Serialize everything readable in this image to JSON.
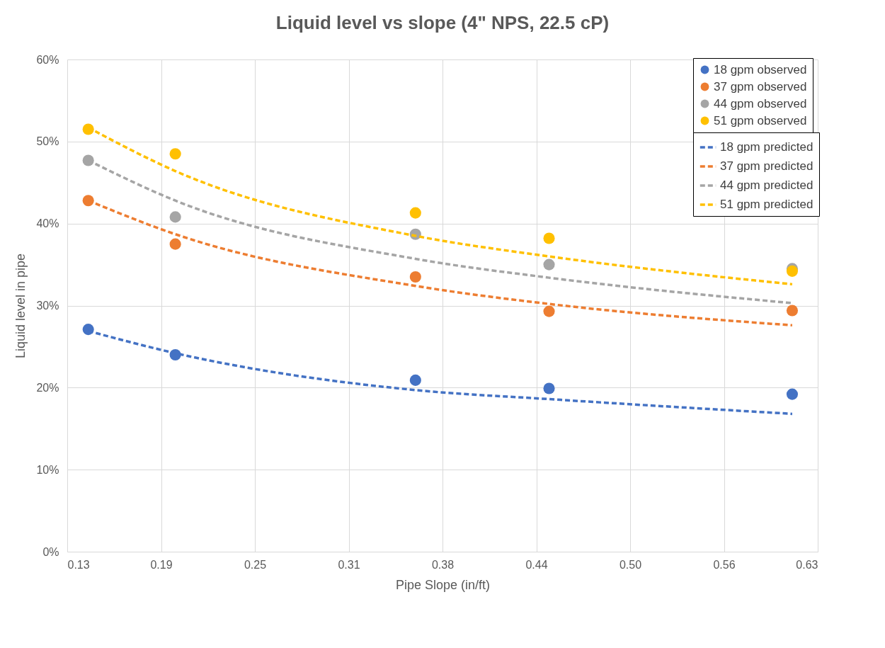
{
  "chart_data": {
    "type": "scatter",
    "title": "Liquid level vs slope (4\" NPS, 22.5 cP)",
    "xlabel": "Pipe Slope (in/ft)",
    "ylabel": "Liquid level in pipe",
    "x": [
      0.139,
      0.197,
      0.357,
      0.446,
      0.608
    ],
    "xlim": [
      0.125,
      0.625
    ],
    "xticks": [
      {
        "value": 0.125,
        "label": "0.13"
      },
      {
        "value": 0.1875,
        "label": "0.19"
      },
      0.25,
      {
        "value": 0.3125,
        "label": "0.31"
      },
      {
        "value": 0.375,
        "label": "0.38"
      },
      {
        "value": 0.4375,
        "label": "0.44"
      },
      {
        "value": 0.5,
        "label": "0.50"
      },
      {
        "value": 0.5625,
        "label": "0.56"
      },
      {
        "value": 0.625,
        "label": "0.63"
      }
    ],
    "ylim": [
      0,
      60
    ],
    "yticks": [
      {
        "value": 0,
        "label": "0%"
      },
      {
        "value": 10,
        "label": "10%"
      },
      {
        "value": 20,
        "label": "20%"
      },
      {
        "value": 30,
        "label": "30%"
      },
      {
        "value": 40,
        "label": "40%"
      },
      {
        "value": 50,
        "label": "50%"
      },
      {
        "value": 60,
        "label": "60%"
      }
    ],
    "grid": true,
    "legend": "top right",
    "marker": "circle",
    "series": [
      {
        "name": "18 gpm observed",
        "color": "#4472c4",
        "values": [
          27.1,
          24.0,
          20.9,
          19.9,
          19.2
        ]
      },
      {
        "name": "37 gpm observed",
        "color": "#ed7d31",
        "values": [
          42.8,
          37.5,
          33.5,
          29.3,
          29.4
        ]
      },
      {
        "name": "44 gpm observed",
        "color": "#a5a5a5",
        "values": [
          47.7,
          40.8,
          38.7,
          35.0,
          34.5
        ]
      },
      {
        "name": "51 gpm observed",
        "color": "#ffc000",
        "values": [
          51.5,
          48.5,
          41.3,
          38.2,
          34.2
        ]
      },
      {
        "name": "18 gpm predicted",
        "color": "#4472c4",
        "type": "line",
        "line_style": "dashed",
        "marker": "none",
        "values": [
          26.9,
          24.2,
          19.7,
          18.6,
          16.8
        ]
      },
      {
        "name": "37 gpm predicted",
        "color": "#ed7d31",
        "type": "line",
        "line_style": "dashed",
        "marker": "none",
        "values": [
          42.8,
          38.7,
          32.4,
          30.2,
          27.6
        ]
      },
      {
        "name": "44 gpm predicted",
        "color": "#a5a5a5",
        "type": "line",
        "line_style": "dashed",
        "marker": "none",
        "values": [
          47.7,
          42.8,
          35.7,
          33.4,
          30.3
        ]
      },
      {
        "name": "51 gpm predicted",
        "color": "#ffc000",
        "type": "line",
        "line_style": "dashed",
        "marker": "none",
        "values": [
          51.7,
          46.4,
          38.5,
          36.0,
          32.6
        ]
      }
    ]
  }
}
